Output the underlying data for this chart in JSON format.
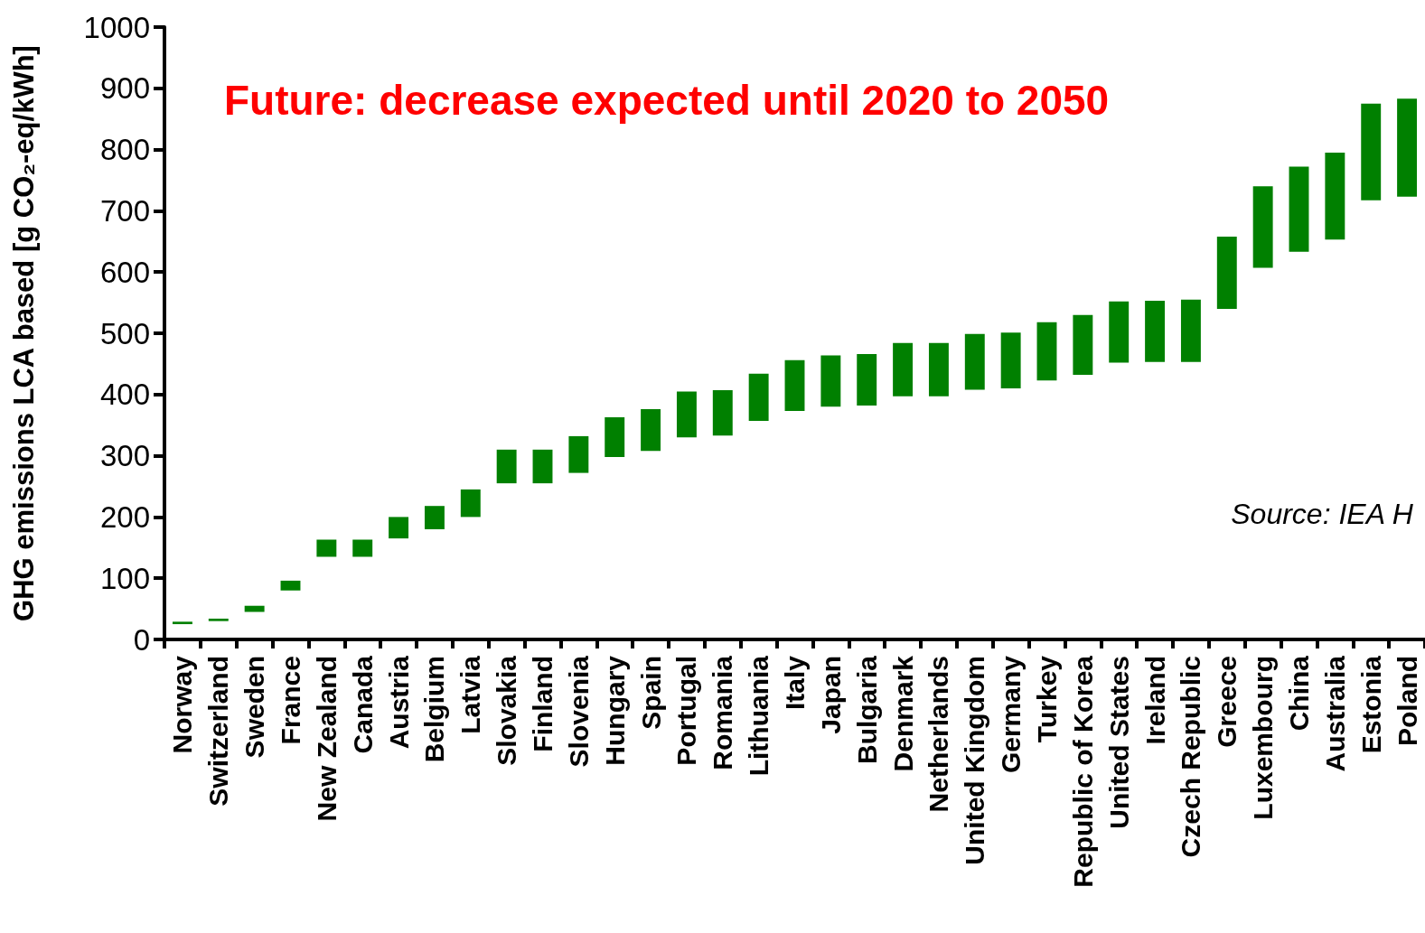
{
  "chart_data": {
    "type": "bar",
    "ylabel": "GHG emissions LCA based [g CO₂-eq/kWh]",
    "categories": [
      "Norway",
      "Switzerland",
      "Sweden",
      "France",
      "New Zealand",
      "Canada",
      "Austria",
      "Belgium",
      "Latvia",
      "Slovakia",
      "Finland",
      "Slovenia",
      "Hungary",
      "Spain",
      "Portugal",
      "Romania",
      "Lithuania",
      "Italy",
      "Japan",
      "Bulgaria",
      "Denmark",
      "Netherlands",
      "United Kingdom",
      "Germany",
      "Turkey",
      "Republic of Korea",
      "United States",
      "Ireland",
      "Czech Republic",
      "Greece",
      "Luxembourg",
      "China",
      "Australia",
      "Estonia",
      "Poland"
    ],
    "base": [
      25,
      30,
      45,
      80,
      135,
      135,
      165,
      180,
      200,
      255,
      255,
      272,
      298,
      308,
      330,
      333,
      357,
      373,
      380,
      382,
      397,
      397,
      408,
      410,
      423,
      432,
      452,
      453,
      453,
      540,
      607,
      633,
      653,
      717,
      723
    ],
    "values": [
      4,
      4,
      10,
      16,
      28,
      28,
      35,
      38,
      45,
      55,
      55,
      60,
      65,
      68,
      75,
      74,
      77,
      83,
      84,
      84,
      87,
      87,
      91,
      91,
      95,
      98,
      100,
      100,
      102,
      118,
      133,
      139,
      142,
      158,
      160
    ],
    "color": "#008000",
    "ylim": [
      0,
      1000
    ],
    "yticks": [
      0,
      100,
      200,
      300,
      400,
      500,
      600,
      700,
      800,
      900,
      1000
    ],
    "grid": false,
    "annotations": [
      "Future: decrease expected until 2020 to 2050",
      "Source: IEA H"
    ]
  }
}
